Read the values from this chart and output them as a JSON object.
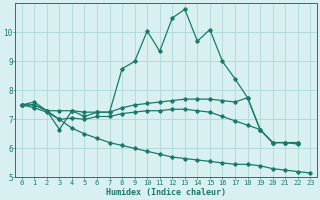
{
  "xlabel": "Humidex (Indice chaleur)",
  "bg_color": "#d8f0f0",
  "grid_color": "#b0d8d8",
  "line_color": "#1a7a6a",
  "xlim": [
    -0.5,
    23.5
  ],
  "ylim": [
    5,
    11
  ],
  "yticks": [
    5,
    6,
    7,
    8,
    9,
    10
  ],
  "xticks": [
    0,
    1,
    2,
    3,
    4,
    5,
    6,
    7,
    8,
    9,
    10,
    11,
    12,
    13,
    14,
    15,
    16,
    17,
    18,
    19,
    20,
    21,
    22,
    23
  ],
  "lines": [
    {
      "x": [
        0,
        1,
        2,
        3,
        4,
        5,
        6,
        7,
        8,
        9,
        10,
        11,
        12,
        13,
        14,
        15,
        16,
        17,
        18,
        19,
        20,
        21,
        22
      ],
      "y": [
        7.5,
        7.6,
        7.3,
        6.65,
        7.3,
        7.1,
        7.25,
        7.25,
        8.75,
        9.0,
        10.05,
        9.35,
        10.5,
        10.8,
        9.7,
        10.1,
        9.0,
        8.4,
        7.75,
        6.65,
        6.2,
        6.2,
        6.2
      ]
    },
    {
      "x": [
        0,
        1,
        2,
        3,
        4,
        5,
        6,
        7,
        8,
        9,
        10,
        11,
        12,
        13,
        14,
        15,
        16,
        17,
        18,
        19,
        20,
        21,
        22
      ],
      "y": [
        7.5,
        7.5,
        7.3,
        7.3,
        7.3,
        7.25,
        7.25,
        7.25,
        7.4,
        7.5,
        7.55,
        7.6,
        7.65,
        7.7,
        7.7,
        7.7,
        7.65,
        7.6,
        7.75,
        6.65,
        6.2,
        6.2,
        6.2
      ]
    },
    {
      "x": [
        0,
        1,
        2,
        3,
        4,
        5,
        6,
        7,
        8,
        9,
        10,
        11,
        12,
        13,
        14,
        15,
        16,
        17,
        18,
        19,
        20,
        21,
        22
      ],
      "y": [
        7.5,
        7.5,
        7.3,
        7.0,
        7.05,
        7.0,
        7.1,
        7.1,
        7.2,
        7.25,
        7.3,
        7.3,
        7.35,
        7.35,
        7.3,
        7.25,
        7.1,
        6.95,
        6.8,
        6.65,
        6.2,
        6.2,
        6.15
      ]
    },
    {
      "x": [
        0,
        1,
        2,
        3,
        4,
        5,
        6,
        7,
        8,
        9,
        10,
        11,
        12,
        13,
        14,
        15,
        16,
        17,
        18,
        19,
        20,
        21,
        22,
        23
      ],
      "y": [
        7.5,
        7.4,
        7.25,
        7.0,
        6.7,
        6.5,
        6.35,
        6.2,
        6.1,
        6.0,
        5.9,
        5.8,
        5.7,
        5.65,
        5.6,
        5.55,
        5.5,
        5.45,
        5.45,
        5.4,
        5.3,
        5.25,
        5.2,
        5.15
      ]
    }
  ],
  "marker": "D",
  "markersize": 1.8,
  "linewidth": 0.9,
  "xlabel_fontsize": 6.0,
  "tick_fontsize": 5.0,
  "ytick_fontsize": 5.5
}
